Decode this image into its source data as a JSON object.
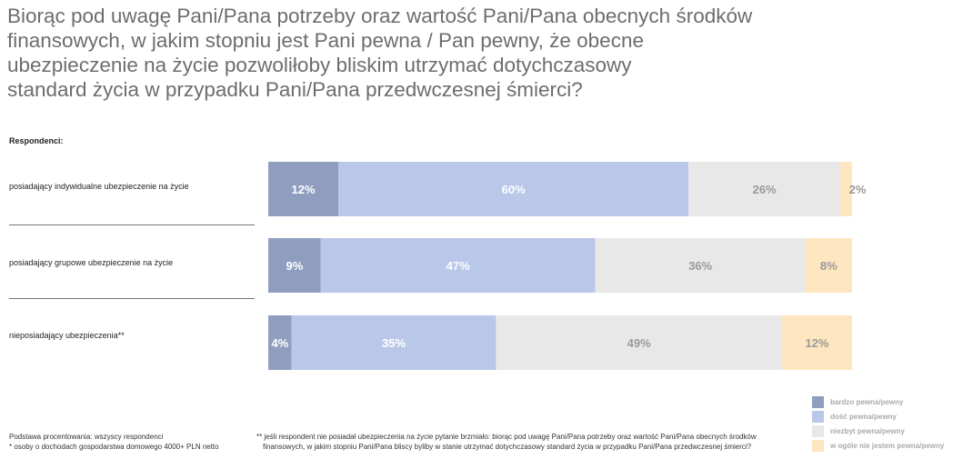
{
  "chart_data": {
    "type": "bar",
    "orientation": "horizontal-stacked-100",
    "title": "Biorąc pod uwagę Pani/Pana potrzeby oraz wartość Pani/Pana obecnych środków finansowych, w jakim stopniu jest Pani pewna / Pan pewny, że obecne ubezpieczenie na życie pozwoliłoby bliskim utrzymać dotychczasowy standard życia w przypadku Pani/Pana przedwczesnej śmierci?",
    "title_lines": [
      "Biorąc pod uwagę Pani/Pana potrzeby oraz wartość Pani/Pana obecnych środków",
      "finansowych, w jakim stopniu jest Pani pewna / Pan pewny, że obecne",
      "ubezpieczenie na życie pozwoliłoby bliskim utrzymać dotychczasowy",
      "standard życia w przypadku Pani/Pana przedwczesnej śmierci?"
    ],
    "category_header": "Respondenci:",
    "categories": [
      "posiadający indywidualne ubezpieczenie na życie",
      "posiadający grupowe ubezpieczenie na życie",
      "nieposiadający ubezpieczenia**"
    ],
    "series": [
      {
        "name": "bardzo pewna/pewny",
        "values": [
          12,
          9,
          4
        ],
        "color": "#8f9ebf",
        "label_color": "#ffffff"
      },
      {
        "name": "dość pewna/pewny",
        "values": [
          60,
          47,
          35
        ],
        "color": "#b9c7e9",
        "label_color": "#ffffff"
      },
      {
        "name": "niezbyt pewna/pewny",
        "values": [
          26,
          36,
          49
        ],
        "color": "#e8e8e8",
        "label_color": "#9a9a9a"
      },
      {
        "name": "w ogóle nie jestem pewna/pewny",
        "values": [
          2,
          8,
          12
        ],
        "color": "#fde6c0",
        "label_color": "#9a9a9a"
      }
    ],
    "value_suffix": "%",
    "legend_position": "bottom-right",
    "grid": false
  },
  "footnotes": {
    "base": "Podstawa procentowania: wszyscy respondenci",
    "income": "* osoby o dochodach gospodarstwa domowego 4000+ PLN netto",
    "note_line1": "** jeśli respondent nie posiadał ubezpieczenia na życie pytanie brzmiało: biorąc pod uwagę Pani/Pana potrzeby oraz wartość Pani/Pana obecnych środków",
    "note_line2": "finansowych, w jakim stopniu Pani/Pana bliscy byliby w stanie utrzymać dotychczasowy standard życia w przypadku Pani/Pana przedwczesnej śmierci?"
  }
}
